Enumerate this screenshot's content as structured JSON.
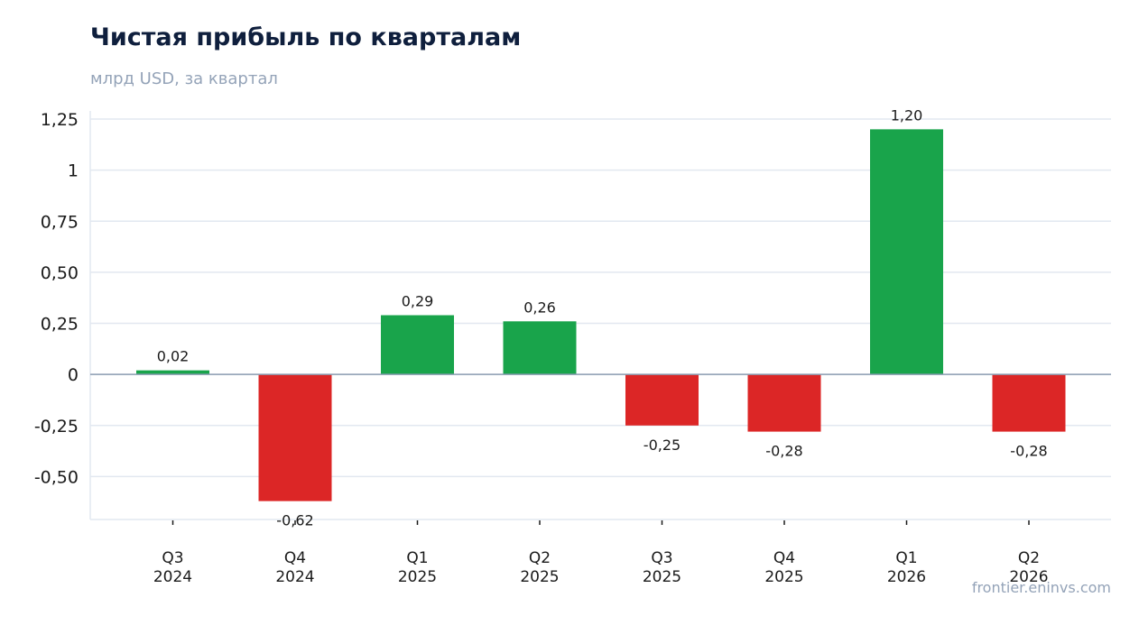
{
  "header": {
    "title": "Чистая прибыль по кварталам",
    "subtitle": "млрд USD, за квартал"
  },
  "footer": {
    "source": "frontier.eninvs.com"
  },
  "colors": {
    "positive": "#19a44b",
    "negative": "#dc2626",
    "grid": "#e2e8f0",
    "zero_line": "#8a9bb0"
  },
  "chart_data": {
    "type": "bar",
    "title": "Чистая прибыль по кварталам",
    "subtitle": "млрд USD, за квартал",
    "xlabel": "",
    "ylabel": "",
    "categories": [
      [
        "Q3",
        "2024"
      ],
      [
        "Q4",
        "2024"
      ],
      [
        "Q1",
        "2025"
      ],
      [
        "Q2",
        "2025"
      ],
      [
        "Q3",
        "2025"
      ],
      [
        "Q4",
        "2025"
      ],
      [
        "Q1",
        "2026"
      ],
      [
        "Q2",
        "2026"
      ]
    ],
    "values": [
      0.02,
      -0.62,
      0.29,
      0.26,
      -0.25,
      -0.28,
      1.2,
      -0.28
    ],
    "data_labels": [
      "0,02",
      "-0,62",
      "0,29",
      "0,26",
      "-0,25",
      "-0,28",
      "1,20",
      "-0,28"
    ],
    "yticks": [
      -0.5,
      -0.25,
      0,
      0.25,
      0.5,
      0.75,
      1,
      1.25
    ],
    "ytick_labels": [
      "-0,50",
      "-0,25",
      "0",
      "0,25",
      "0,50",
      "0,75",
      "1",
      "1,25"
    ],
    "ylim": [
      -0.71,
      1.29
    ],
    "grid": true,
    "legend": "none"
  }
}
